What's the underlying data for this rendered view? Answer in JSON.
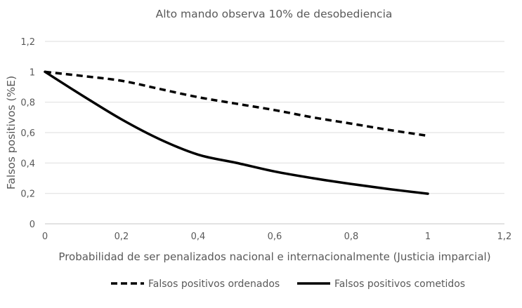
{
  "chart_data": {
    "type": "line",
    "title": "Alto mando observa 10% de desobediencia",
    "xlabel": "Probabilidad de ser penalizados nacional e internacionalmente (Justicia imparcial)",
    "ylabel": "Falsos positivos (%E)",
    "xlim": [
      0,
      1.2
    ],
    "ylim": [
      0,
      1.2
    ],
    "xticks": [
      "0",
      "0,2",
      "0,4",
      "0,6",
      "0,8",
      "1",
      "1,2"
    ],
    "yticks": [
      "0",
      "0,2",
      "0,4",
      "0,6",
      "0,8",
      "1",
      "1,2"
    ],
    "grid": true,
    "legend_position": "bottom",
    "x": [
      0,
      0.1,
      0.2,
      0.3,
      0.4,
      0.5,
      0.6,
      0.7,
      0.8,
      0.9,
      1.0
    ],
    "series": [
      {
        "name": "Falsos positivos ordenados",
        "style": "dashed",
        "color": "#000000",
        "values": [
          1.0,
          0.972,
          0.941,
          0.887,
          0.833,
          0.79,
          0.748,
          0.7,
          0.659,
          0.617,
          0.579
        ]
      },
      {
        "name": "Falsos positivos cometidos",
        "style": "solid",
        "color": "#000000",
        "values": [
          1.0,
          0.84,
          0.687,
          0.556,
          0.455,
          0.401,
          0.344,
          0.3,
          0.262,
          0.228,
          0.198
        ]
      }
    ]
  }
}
